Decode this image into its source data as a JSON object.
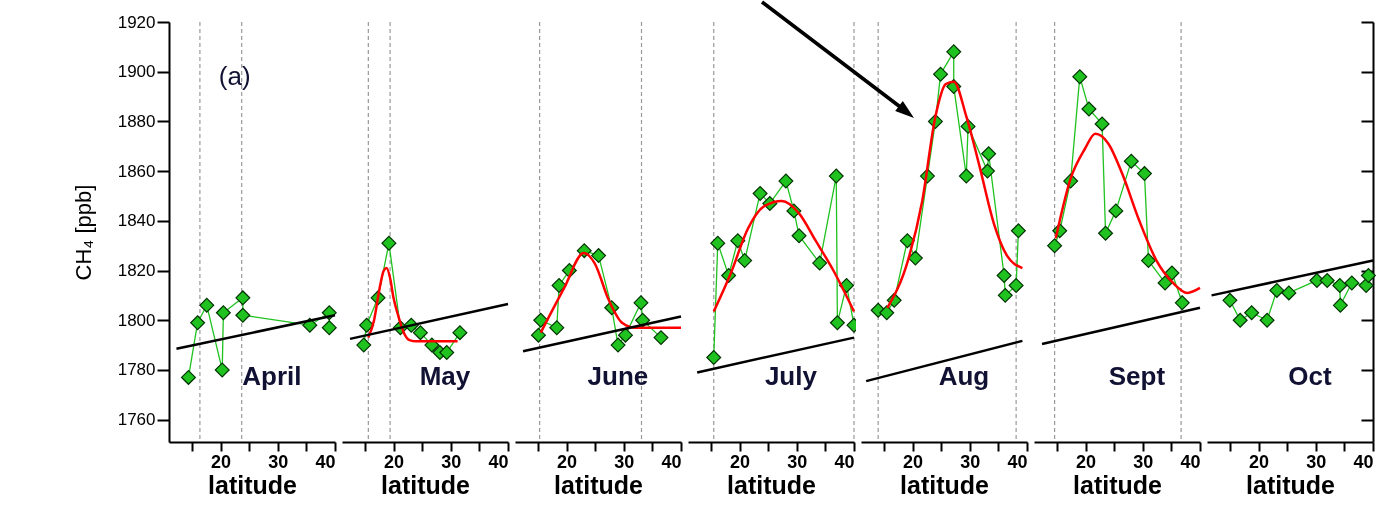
{
  "chart_data": [
    {
      "type": "line",
      "title": "April",
      "annotations": [
        "(a)"
      ],
      "xlabel": "latitude",
      "ylabel": "CH₄ [ppb]",
      "xlim": [
        11,
        40
      ],
      "xticks": [
        {
          "value": 15,
          "label": null
        },
        20,
        {
          "value": 25,
          "label": null
        },
        30,
        {
          "value": 35,
          "label": null
        },
        40
      ],
      "ylim": [
        1751,
        1920
      ],
      "yticks": [
        1760,
        1780,
        1800,
        1820,
        1840,
        1860,
        1880,
        1900,
        1920
      ],
      "series": [
        {
          "type": "line",
          "marker": "diamond",
          "color": "#1fc21f",
          "x": [
            14.4,
            16.0,
            17.6,
            20.3,
            20.5,
            23.9,
            23.9,
            35.6,
            39.0,
            39.0
          ],
          "values": [
            1777,
            1799,
            1806,
            1780,
            1803,
            1809,
            1802,
            1798,
            1803,
            1797
          ]
        },
        {
          "type": "line",
          "color": "#000000",
          "x": [
            12.3,
            40
          ],
          "values": [
            1788.5,
            1802
          ]
        }
      ],
      "ref_lines": [
        {
          "axis": "x",
          "value": 16.4,
          "line_style": "dashed",
          "color": "#999999"
        },
        {
          "axis": "x",
          "value": 23.7,
          "line_style": "dashed",
          "color": "#999999"
        }
      ]
    },
    {
      "type": "line",
      "title": "May",
      "xlabel": "latitude",
      "xlim": [
        11,
        40
      ],
      "xticks": [
        {
          "value": 15,
          "label": null
        },
        20,
        {
          "value": 25,
          "label": null
        },
        30,
        {
          "value": 35,
          "label": null
        },
        40
      ],
      "ylim": [
        1751,
        1920
      ],
      "tick_labels": "x",
      "series": [
        {
          "type": "line",
          "marker": "diamond",
          "color": "#1fc21f",
          "x": [
            14.8,
            15.3,
            17.3,
            19.2,
            21.2,
            23.1,
            24.7,
            26.7,
            28.1,
            29.3,
            31.6
          ],
          "values": [
            1790,
            1798,
            1809,
            1831,
            1797,
            1798,
            1795,
            1790,
            1787,
            1787,
            1795
          ]
        },
        {
          "type": "line",
          "color": "#ff0000",
          "x": [
            15.6,
            16.6,
            17.5,
            18.3,
            18.8,
            19.4,
            20.0,
            20.8,
            21.8,
            22.8,
            24.0,
            31.2
          ],
          "values": [
            1793,
            1800,
            1812,
            1820,
            1821,
            1817,
            1809,
            1802,
            1795,
            1792,
            1791.5,
            1791.5
          ]
        },
        {
          "type": "line",
          "color": "#000000",
          "x": [
            12.4,
            40
          ],
          "values": [
            1792.5,
            1806.5
          ]
        }
      ],
      "ref_lines": [
        {
          "axis": "x",
          "value": 15.6,
          "line_style": "dashed",
          "color": "#999999"
        },
        {
          "axis": "x",
          "value": 19.4,
          "line_style": "dashed",
          "color": "#999999"
        }
      ]
    },
    {
      "type": "line",
      "title": "June",
      "xlabel": "latitude",
      "xlim": [
        11,
        40
      ],
      "xticks": [
        {
          "value": 15,
          "label": null
        },
        20,
        {
          "value": 25,
          "label": null
        },
        30,
        {
          "value": 35,
          "label": null
        },
        40
      ],
      "ylim": [
        1751,
        1920
      ],
      "tick_labels": "x",
      "series": [
        {
          "type": "line",
          "marker": "diamond",
          "color": "#1fc21f",
          "x": [
            15.1,
            15.5,
            18.3,
            18.7,
            20.5,
            23.1,
            25.6,
            27.9,
            29.0,
            30.3,
            33.0,
            33.3,
            36.5
          ],
          "values": [
            1794,
            1800,
            1797,
            1814,
            1820,
            1828,
            1826,
            1805,
            1790,
            1794,
            1807,
            1800,
            1793
          ]
        },
        {
          "type": "line",
          "color": "#ff0000",
          "x": [
            15.5,
            19.6,
            23.0,
            24.9,
            27.4,
            29.7,
            32.0,
            40
          ],
          "values": [
            1795,
            1813,
            1827,
            1823,
            1808,
            1799,
            1797,
            1797
          ]
        },
        {
          "type": "line",
          "color": "#000000",
          "x": [
            12.4,
            40
          ],
          "values": [
            1787.5,
            1801.5
          ]
        }
      ],
      "ref_lines": [
        {
          "axis": "x",
          "value": 15.3,
          "line_style": "dashed",
          "color": "#999999"
        },
        {
          "axis": "x",
          "value": 33.1,
          "line_style": "dashed",
          "color": "#999999"
        }
      ]
    },
    {
      "type": "line",
      "title": "July",
      "xlabel": "latitude",
      "xlim": [
        11,
        40
      ],
      "xticks": [
        {
          "value": 15,
          "label": null
        },
        20,
        {
          "value": 25,
          "label": null
        },
        30,
        {
          "value": 35,
          "label": null
        },
        40
      ],
      "ylim": [
        1751,
        1920
      ],
      "tick_labels": "x",
      "series": [
        {
          "type": "line",
          "marker": "diamond",
          "color": "#1fc21f",
          "x": [
            15.5,
            16.2,
            18.1,
            19.7,
            20.9,
            23.6,
            25.3,
            28.1,
            29.5,
            30.4,
            34.0,
            36.9,
            37.1,
            38.7,
            40
          ],
          "values": [
            1785,
            1831,
            1818,
            1832,
            1824,
            1851,
            1847,
            1856,
            1844,
            1834,
            1823,
            1858,
            1799,
            1814,
            1798
          ]
        },
        {
          "type": "line",
          "color": "#ff0000",
          "x": [
            15.5,
            18.5,
            21.5,
            24.4,
            27.4,
            30.4,
            33.3,
            36.4,
            40
          ],
          "values": [
            1803.5,
            1819,
            1837,
            1846,
            1848,
            1843,
            1832,
            1820,
            1803.5
          ]
        },
        {
          "type": "line",
          "color": "#000000",
          "x": [
            12.6,
            40
          ],
          "values": [
            1779,
            1793
          ]
        }
      ],
      "ref_lines": [
        {
          "axis": "x",
          "value": 15.5,
          "line_style": "dashed",
          "color": "#999999"
        },
        {
          "axis": "x",
          "value": 40,
          "line_style": "dashed",
          "color": "#999999"
        }
      ]
    },
    {
      "type": "line",
      "title": "Aug",
      "xlabel": "latitude",
      "xlim": [
        11,
        40
      ],
      "xticks": [
        {
          "value": 15,
          "label": null
        },
        20,
        {
          "value": 25,
          "label": null
        },
        30,
        {
          "value": 35,
          "label": null
        },
        40
      ],
      "ylim": [
        1751,
        1920
      ],
      "tick_labels": "x",
      "series": [
        {
          "type": "line",
          "marker": "diamond",
          "color": "#1fc21f",
          "x": [
            14.0,
            15.5,
            16.8,
            19.1,
            20.5,
            22.6,
            24.0,
            24.9,
            27.2,
            27.2,
            29.4,
            29.7,
            33.1,
            33.3,
            36.0,
            36.2,
            38.1,
            38.5
          ],
          "values": [
            1804,
            1803,
            1808,
            1832,
            1825,
            1858,
            1880,
            1899,
            1908,
            1894,
            1858,
            1878,
            1860,
            1867,
            1818,
            1810,
            1814,
            1836
          ]
        },
        {
          "type": "line",
          "color": "#ff0000",
          "x": [
            15.6,
            19.2,
            21.7,
            24.0,
            25.8,
            27.2,
            29.4,
            31.7,
            34.2,
            36.5,
            39.2
          ],
          "values": [
            1805,
            1824,
            1848,
            1882,
            1895,
            1896,
            1882,
            1862,
            1839,
            1826,
            1821
          ]
        },
        {
          "type": "line",
          "color": "#000000",
          "x": [
            11.9,
            39.2
          ],
          "values": [
            1775.5,
            1791.7
          ]
        }
      ],
      "ref_lines": [
        {
          "axis": "x",
          "value": 14.0,
          "line_style": "dashed",
          "color": "#999999"
        },
        {
          "axis": "x",
          "value": 38.1,
          "line_style": "dashed",
          "color": "#999999"
        }
      ]
    },
    {
      "type": "line",
      "title": "Sept",
      "xlabel": "latitude",
      "xlim": [
        11,
        40
      ],
      "xticks": [
        {
          "value": 15,
          "label": null
        },
        20,
        {
          "value": 25,
          "label": null
        },
        30,
        {
          "value": 35,
          "label": null
        },
        40
      ],
      "ylim": [
        1751,
        1920
      ],
      "tick_labels": "x",
      "series": [
        {
          "type": "line",
          "marker": "diamond",
          "color": "#1fc21f",
          "x": [
            14.6,
            15.5,
            17.4,
            19.0,
            20.6,
            22.9,
            23.5,
            25.3,
            28.0,
            30.3,
            31.0,
            33.9,
            35.1,
            36.9
          ],
          "values": [
            1830,
            1836,
            1856,
            1898,
            1885,
            1879,
            1835,
            1844,
            1864,
            1859,
            1824,
            1815,
            1819,
            1807
          ]
        },
        {
          "type": "line",
          "color": "#ff0000",
          "x": [
            14.8,
            17.4,
            19.9,
            21.7,
            24.0,
            26.4,
            29.4,
            32.4,
            35.3,
            37.8,
            40
          ],
          "values": [
            1833,
            1857,
            1869,
            1875,
            1871,
            1859,
            1840,
            1824,
            1815,
            1811,
            1813
          ]
        },
        {
          "type": "line",
          "color": "#000000",
          "x": [
            12.4,
            40
          ],
          "values": [
            1790.4,
            1805
          ]
        }
      ],
      "ref_lines": [
        {
          "axis": "x",
          "value": 14.6,
          "line_style": "dashed",
          "color": "#999999"
        },
        {
          "axis": "x",
          "value": 36.7,
          "line_style": "dashed",
          "color": "#999999"
        }
      ]
    },
    {
      "type": "line",
      "title": "Oct",
      "xlabel": "latitude",
      "xlim": [
        11,
        40
      ],
      "xticks": [
        {
          "value": 15,
          "label": null
        },
        20,
        {
          "value": 25,
          "label": null
        },
        30,
        {
          "value": 35,
          "label": null
        },
        40
      ],
      "ylim": [
        1751,
        1920
      ],
      "yticks": [
        {
          "value": 1760,
          "label": null
        },
        {
          "value": 1780,
          "label": null
        },
        {
          "value": 1800,
          "label": null
        },
        {
          "value": 1820,
          "label": null
        },
        {
          "value": 1840,
          "label": null
        },
        {
          "value": 1860,
          "label": null
        },
        {
          "value": 1880,
          "label": null
        },
        {
          "value": 1900,
          "label": null
        },
        {
          "value": 1920,
          "label": null
        }
      ],
      "tick_labels": "x",
      "series": [
        {
          "type": "line",
          "marker": "diamond",
          "color": "#1fc21f",
          "x": [
            15.0,
            16.8,
            18.8,
            21.5,
            23.2,
            25.3,
            30.2,
            32.0,
            34.2,
            34.3,
            36.3,
            38.8,
            39.2
          ],
          "values": [
            1808,
            1800,
            1803,
            1800,
            1812,
            1811,
            1816,
            1816,
            1814,
            1806,
            1815,
            1814,
            1818
          ]
        },
        {
          "type": "line",
          "color": "#000000",
          "x": [
            11.8,
            40
          ],
          "values": [
            1810,
            1824
          ]
        }
      ]
    }
  ]
}
